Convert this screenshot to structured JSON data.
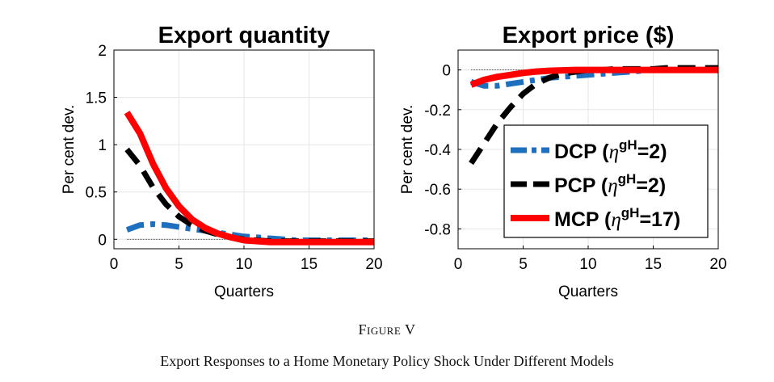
{
  "figure": {
    "label": "Figure V",
    "caption": "Export Responses to a Home Monetary Policy Shock Under Different Models"
  },
  "legend": [
    {
      "name": "DCP",
      "eta": "2",
      "color": "#1f6fbf",
      "style": "dash-dot"
    },
    {
      "name": "PCP",
      "eta": "2",
      "color": "#000000",
      "style": "dash"
    },
    {
      "name": "MCP",
      "eta": "17",
      "color": "#ff0000",
      "style": "solid"
    }
  ],
  "chart_data": [
    {
      "type": "line",
      "title": "Export quantity",
      "xlabel": "Quarters",
      "ylabel": "Per cent dev.",
      "xlim": [
        0,
        20
      ],
      "ylim": [
        -0.1,
        2
      ],
      "xticks": [
        0,
        5,
        10,
        15,
        20
      ],
      "yticks": [
        0,
        0.5,
        1,
        1.5,
        2
      ],
      "xtick_labels": [
        "0",
        "5",
        "10",
        "15",
        "20"
      ],
      "ytick_labels": [
        "0",
        "0.5",
        "1",
        "1.5",
        "2"
      ],
      "grid": true,
      "zero_line": true,
      "x": [
        1,
        2,
        3,
        4,
        5,
        6,
        7,
        8,
        9,
        10,
        11,
        12,
        13,
        14,
        15,
        16,
        17,
        18,
        19,
        20
      ],
      "series": [
        {
          "name": "DCP",
          "color": "#1f6fbf",
          "style": "dash-dot",
          "values": [
            0.1,
            0.15,
            0.16,
            0.15,
            0.13,
            0.11,
            0.09,
            0.07,
            0.05,
            0.03,
            0.02,
            0.01,
            0.0,
            -0.01,
            -0.01,
            -0.01,
            -0.01,
            -0.01,
            -0.01,
            -0.01
          ]
        },
        {
          "name": "PCP",
          "color": "#000000",
          "style": "dash",
          "values": [
            0.95,
            0.78,
            0.55,
            0.37,
            0.24,
            0.15,
            0.09,
            0.05,
            0.02,
            0.0,
            -0.01,
            -0.02,
            -0.02,
            -0.02,
            -0.02,
            -0.02,
            -0.02,
            -0.02,
            -0.02,
            -0.02
          ]
        },
        {
          "name": "MCP",
          "color": "#ff0000",
          "style": "solid",
          "values": [
            1.34,
            1.12,
            0.8,
            0.54,
            0.35,
            0.21,
            0.12,
            0.06,
            0.02,
            -0.01,
            -0.02,
            -0.03,
            -0.03,
            -0.03,
            -0.03,
            -0.03,
            -0.03,
            -0.03,
            -0.03,
            -0.03
          ]
        }
      ]
    },
    {
      "type": "line",
      "title": "Export price ($)",
      "xlabel": "Quarters",
      "ylabel": "Per cent dev.",
      "xlim": [
        0,
        20
      ],
      "ylim": [
        -0.9,
        0.1
      ],
      "xticks": [
        0,
        5,
        10,
        15,
        20
      ],
      "yticks": [
        0,
        -0.2,
        -0.4,
        -0.6,
        -0.8
      ],
      "xtick_labels": [
        "0",
        "5",
        "10",
        "15",
        "20"
      ],
      "ytick_labels": [
        "0",
        "-0.2",
        "-0.4",
        "-0.6",
        "-0.8"
      ],
      "grid": true,
      "zero_line": true,
      "legend_position": "right",
      "x": [
        1,
        2,
        3,
        4,
        5,
        6,
        7,
        8,
        9,
        10,
        11,
        12,
        13,
        14,
        15,
        16,
        17,
        18,
        19,
        20
      ],
      "series": [
        {
          "name": "DCP",
          "color": "#1f6fbf",
          "style": "dash-dot",
          "values": [
            -0.06,
            -0.08,
            -0.08,
            -0.07,
            -0.06,
            -0.05,
            -0.04,
            -0.035,
            -0.03,
            -0.025,
            -0.02,
            -0.015,
            -0.01,
            -0.005,
            0.0,
            0.0,
            0.0,
            0.0,
            0.0,
            0.0
          ]
        },
        {
          "name": "PCP",
          "color": "#000000",
          "style": "dash",
          "values": [
            -0.47,
            -0.37,
            -0.27,
            -0.19,
            -0.12,
            -0.07,
            -0.04,
            -0.02,
            -0.01,
            0.0,
            0.0,
            0.005,
            0.005,
            0.005,
            0.005,
            0.01,
            0.01,
            0.01,
            0.01,
            0.01
          ]
        },
        {
          "name": "MCP",
          "color": "#ff0000",
          "style": "solid",
          "values": [
            -0.075,
            -0.05,
            -0.035,
            -0.025,
            -0.015,
            -0.008,
            -0.004,
            -0.002,
            0.0,
            0.0,
            0.0,
            0.0,
            0.0,
            0.0,
            0.0,
            0.0,
            0.0,
            0.0,
            0.0,
            0.0
          ]
        }
      ]
    }
  ]
}
